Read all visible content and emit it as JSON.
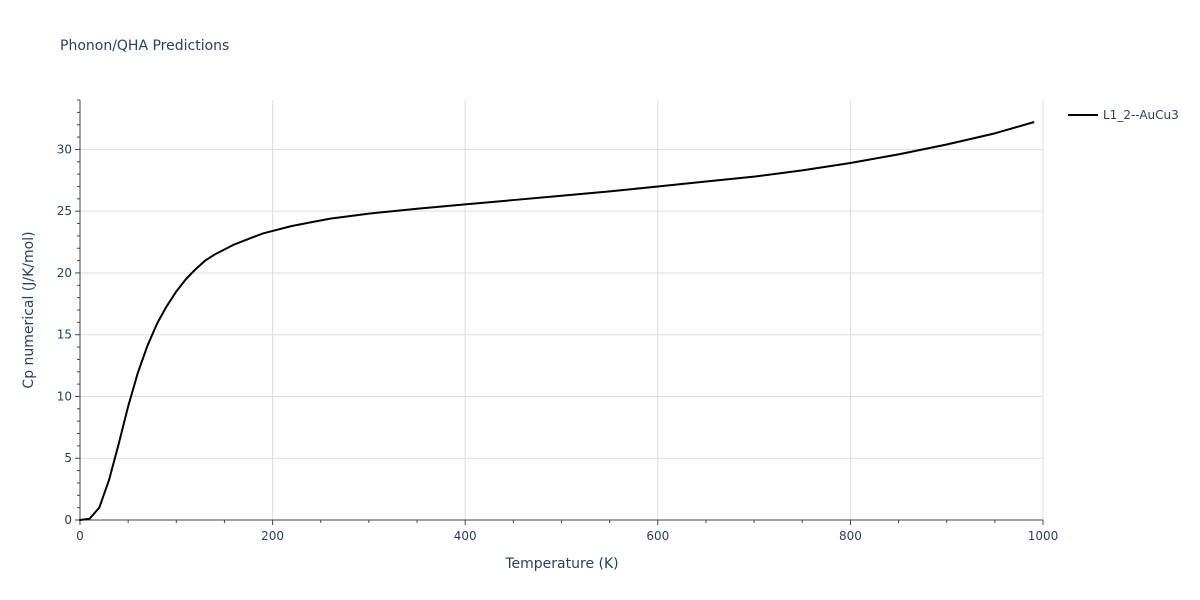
{
  "chart_data": {
    "type": "line",
    "title": "Phonon/QHA Predictions",
    "xlabel": "Temperature (K)",
    "ylabel": "Cp numerical (J/K/mol)",
    "xlim": [
      0,
      1000
    ],
    "ylim": [
      0,
      34
    ],
    "x_ticks": [
      0,
      200,
      400,
      600,
      800,
      1000
    ],
    "y_ticks": [
      0,
      5,
      10,
      15,
      20,
      25,
      30
    ],
    "grid": true,
    "legend_position": "top-right",
    "series": [
      {
        "name": "L1_2--AuCu3",
        "color": "#000000",
        "x": [
          0,
          10,
          20,
          30,
          40,
          50,
          60,
          70,
          80,
          90,
          100,
          110,
          120,
          130,
          140,
          150,
          160,
          170,
          180,
          190,
          200,
          220,
          240,
          260,
          280,
          300,
          350,
          400,
          450,
          500,
          550,
          600,
          650,
          700,
          750,
          800,
          850,
          900,
          950,
          990
        ],
        "y": [
          0,
          0.1,
          1.0,
          3.2,
          6.1,
          9.2,
          11.9,
          14.1,
          15.9,
          17.3,
          18.5,
          19.5,
          20.3,
          21.0,
          21.5,
          21.9,
          22.3,
          22.6,
          22.9,
          23.2,
          23.4,
          23.8,
          24.1,
          24.4,
          24.6,
          24.8,
          25.2,
          25.55,
          25.9,
          26.25,
          26.6,
          27.0,
          27.4,
          27.8,
          28.3,
          28.9,
          29.6,
          30.4,
          31.3,
          32.2
        ]
      }
    ]
  }
}
